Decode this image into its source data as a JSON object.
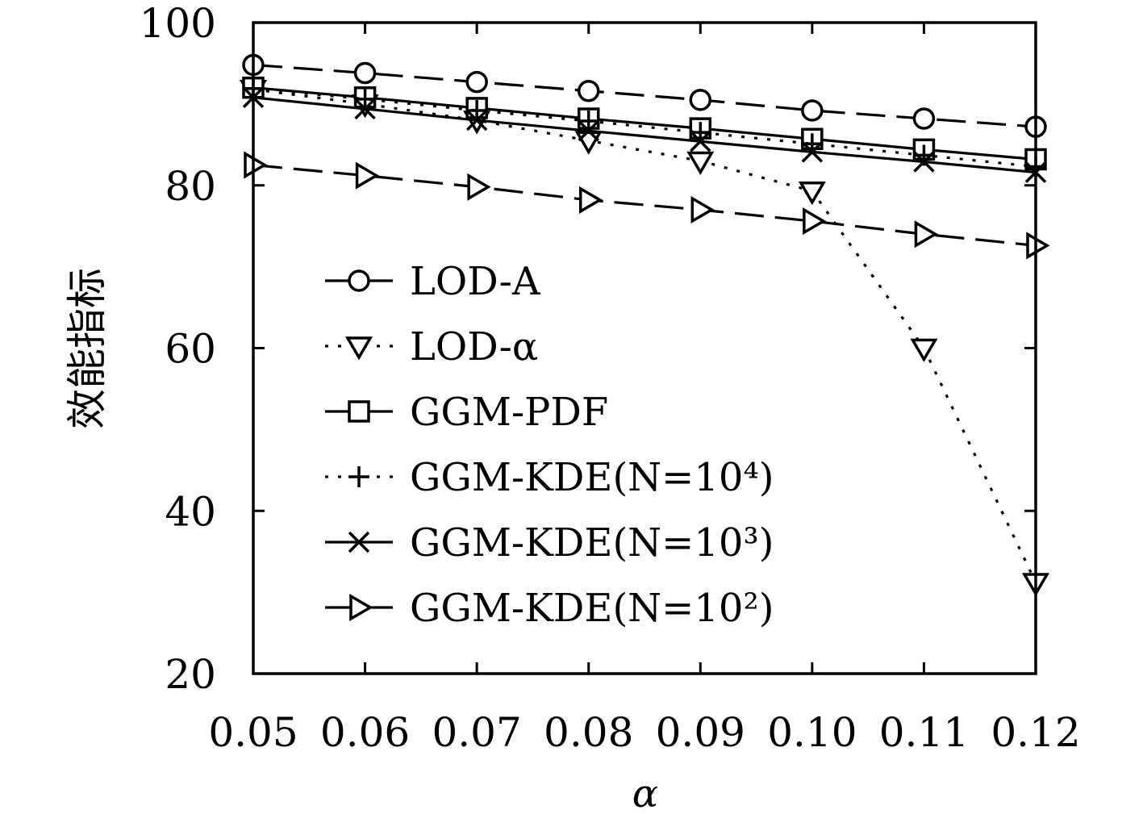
{
  "chart_data": {
    "type": "line",
    "xlabel": "α",
    "ylabel": "效能指标",
    "xlim": [
      0.05,
      0.12
    ],
    "ylim": [
      20,
      100
    ],
    "x": [
      0.05,
      0.06,
      0.07,
      0.08,
      0.09,
      0.1,
      0.11,
      0.12
    ],
    "x_tick_labels": [
      "0.05",
      "0.06",
      "0.07",
      "0.08",
      "0.09",
      "0.10",
      "0.11",
      "0.12"
    ],
    "y_ticks": [
      20,
      40,
      60,
      80,
      100
    ],
    "y_tick_labels": [
      "20",
      "40",
      "60",
      "80",
      "100"
    ],
    "legend_position": "center-left",
    "grid": false,
    "series": [
      {
        "name": "LOD-A",
        "dash": "dashed",
        "marker": "circle",
        "values": [
          94.8,
          93.8,
          92.7,
          91.6,
          90.5,
          89.2,
          88.2,
          87.2
        ]
      },
      {
        "name": "LOD-α",
        "dash": "dotted",
        "marker": "triangle-down",
        "values": [
          91.8,
          90.0,
          88.0,
          85.5,
          83.0,
          79.3,
          60.0,
          31.2
        ]
      },
      {
        "name": "GGM-PDF",
        "dash": "solid",
        "marker": "square",
        "values": [
          92.0,
          90.8,
          89.5,
          88.2,
          87.0,
          85.7,
          84.4,
          83.2
        ]
      },
      {
        "name": "GGM-KDE(N=10⁴)",
        "dash": "dotted",
        "marker": "plus",
        "values": [
          91.9,
          90.6,
          89.2,
          87.9,
          86.5,
          85.1,
          83.7,
          82.3
        ]
      },
      {
        "name": "GGM-KDE(N=10³)",
        "dash": "solid",
        "marker": "x",
        "values": [
          90.8,
          89.4,
          88.0,
          86.7,
          85.4,
          84.1,
          82.9,
          81.6
        ]
      },
      {
        "name": "GGM-KDE(N=10²)",
        "dash": "dashed",
        "marker": "triangle-right",
        "values": [
          82.5,
          81.2,
          79.8,
          78.2,
          77.0,
          75.6,
          74.0,
          72.6
        ]
      }
    ]
  }
}
